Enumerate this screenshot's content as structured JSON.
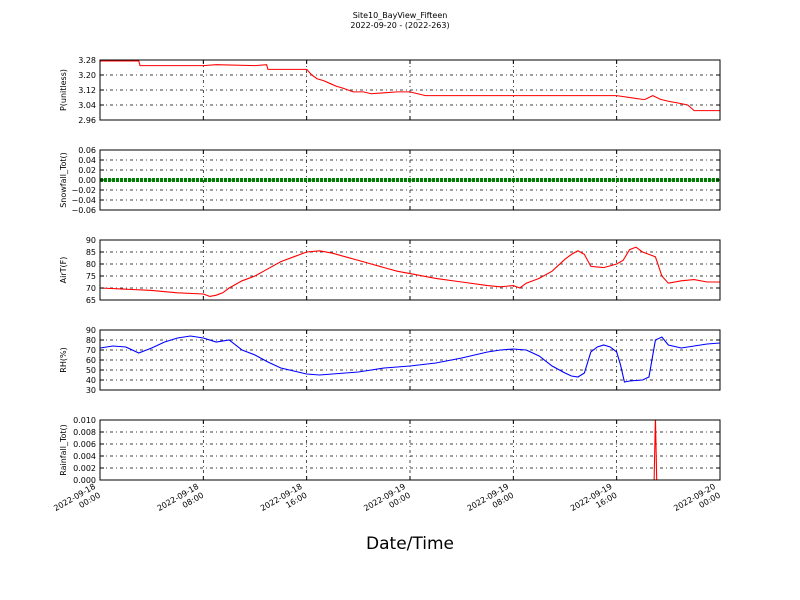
{
  "chart_data": {
    "title": "Site10_BayView_Fifteen",
    "subtitle": "2022-09-20 - (2022-263)",
    "xlabel": "Date/Time",
    "x_ticks": [
      "2022-09-18 00:00",
      "2022-09-18 08:00",
      "2022-09-18 16:00",
      "2022-09-19 00:00",
      "2022-09-19 08:00",
      "2022-09-19 16:00",
      "2022-09-20 00:00"
    ],
    "x_range_hours": [
      0,
      48
    ],
    "grid": true,
    "panels": [
      {
        "type": "line",
        "ylabel": "P(unitless)",
        "color": "#ff0000",
        "ylim": [
          2.96,
          3.28
        ],
        "yticks": [
          "3.28",
          "3.20",
          "3.12",
          "3.04",
          "2.96"
        ],
        "series": [
          {
            "x": [
              0,
              3,
              3.1,
              8,
              9,
              12,
              12.9,
              13,
              16,
              16.4,
              16.8,
              17.3,
              17.8,
              18.3,
              18.8,
              19.6,
              20.4,
              21,
              23,
              24,
              25.2,
              26,
              35,
              38,
              40,
              42,
              42.2,
              42.8,
              43.4,
              44,
              44.8,
              45.5,
              46,
              48
            ],
            "y": [
              3.275,
              3.275,
              3.25,
              3.25,
              3.255,
              3.25,
              3.255,
              3.23,
              3.23,
              3.2,
              3.18,
              3.17,
              3.155,
              3.14,
              3.13,
              3.11,
              3.11,
              3.1,
              3.11,
              3.11,
              3.09,
              3.09,
              3.09,
              3.09,
              3.09,
              3.07,
              3.07,
              3.09,
              3.07,
              3.06,
              3.05,
              3.04,
              3.01,
              3.01
            ]
          }
        ]
      },
      {
        "type": "line",
        "ylabel": "Snowfall_Tot()",
        "color": "#008000",
        "ylim": [
          -0.06,
          0.06
        ],
        "yticks": [
          "0.06",
          "0.04",
          "0.02",
          "0.00",
          "−0.02",
          "−0.04",
          "−0.06"
        ],
        "series": [
          {
            "x": [
              0,
              48
            ],
            "y": [
              0,
              0
            ]
          }
        ]
      },
      {
        "type": "line",
        "ylabel": "AirT(F)",
        "color": "#ff0000",
        "ylim": [
          65,
          90
        ],
        "yticks": [
          "90",
          "85",
          "80",
          "75",
          "70",
          "65"
        ],
        "series": [
          {
            "x": [
              0,
              2,
              4,
              6,
              8,
              8.5,
              9,
              9.5,
              10,
              11,
              12,
              13,
              14,
              15,
              16,
              17,
              18,
              19,
              20,
              21,
              22,
              23,
              24,
              26,
              28,
              30,
              31,
              32,
              32.5,
              33,
              34,
              35,
              36,
              36.5,
              37,
              37.5,
              38,
              39,
              40,
              40.5,
              41,
              41.5,
              42,
              42.5,
              43,
              43.5,
              44,
              45,
              46,
              47,
              48
            ],
            "y": [
              70,
              69.5,
              69,
              68,
              67.5,
              66.5,
              67,
              68,
              70,
              73,
              75,
              78,
              81,
              83,
              85,
              85.5,
              84.5,
              83,
              81.5,
              80,
              78.5,
              77,
              76,
              74,
              72.5,
              71,
              70.5,
              71,
              70,
              72,
              74,
              77,
              82,
              84,
              85.5,
              84,
              79,
              78.5,
              80,
              81.5,
              86,
              87,
              85,
              84,
              83,
              75,
              72,
              73,
              73.5,
              72.5,
              72.5
            ]
          }
        ]
      },
      {
        "type": "line",
        "ylabel": "RH(%)",
        "color": "#0000ff",
        "ylim": [
          30,
          90
        ],
        "yticks": [
          "90",
          "80",
          "70",
          "60",
          "50",
          "40",
          "30"
        ],
        "series": [
          {
            "x": [
              0,
              1,
              2,
              3,
              4,
              5,
              6,
              7,
              8,
              9,
              10,
              11,
              12,
              13,
              14,
              15,
              16,
              17,
              18,
              19,
              20,
              21,
              22,
              23,
              24,
              26,
              28,
              30,
              31,
              32,
              33,
              34,
              35,
              36,
              36.5,
              37,
              37.5,
              38,
              38.5,
              39,
              39.5,
              40,
              40.3,
              40.6,
              41,
              42,
              42.5,
              43,
              43.5,
              44,
              45,
              46,
              47,
              48
            ],
            "y": [
              72,
              74,
              73,
              67,
              72,
              78,
              82,
              84,
              82,
              78,
              80,
              70,
              65,
              58,
              52,
              49,
              46,
              45,
              46,
              47,
              48,
              50,
              52,
              53,
              54,
              57,
              62,
              68,
              70,
              71,
              70,
              64,
              54,
              47,
              44,
              43,
              47,
              68,
              73,
              75,
              73,
              68,
              55,
              38,
              39,
              40,
              43,
              80,
              83,
              75,
              72,
              74,
              76,
              77
            ]
          }
        ]
      },
      {
        "type": "line",
        "ylabel": "Rainfall_Tot()",
        "color": "#ff0000",
        "ylim": [
          0,
          0.01
        ],
        "yticks": [
          "0.010",
          "0.008",
          "0.006",
          "0.004",
          "0.002",
          "0.000"
        ],
        "series": [
          {
            "x": [
              0,
              42.7,
              42.9,
              43.0,
              43.1,
              43.3,
              48
            ],
            "y": [
              0,
              0,
              0,
              0.0105,
              0,
              0,
              0
            ]
          }
        ]
      }
    ]
  }
}
